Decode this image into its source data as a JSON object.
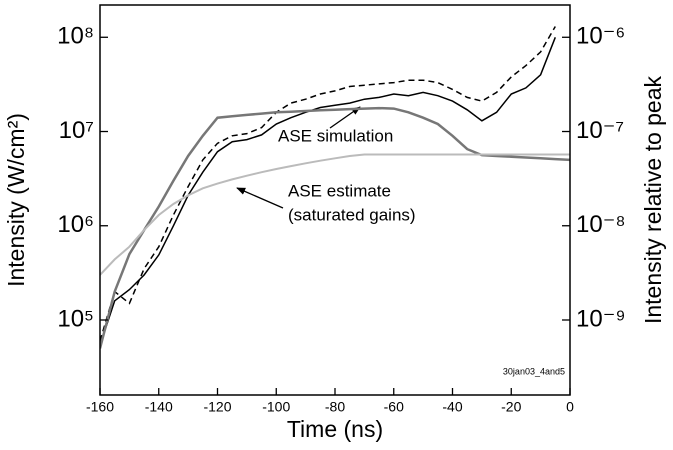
{
  "chart_data": {
    "type": "line",
    "xlabel": "Time (ns)",
    "ylabel": "Intensity (W/cm²)",
    "y2label": "Intensity relative to peak",
    "annotations": [
      "ASE simulation",
      "ASE estimate",
      "(saturated gains)",
      "30jan03_4and5"
    ],
    "x": [
      -160,
      -155,
      -150,
      -145,
      -140,
      -135,
      -130,
      -125,
      -120,
      -115,
      -110,
      -105,
      -100,
      -95,
      -90,
      -85,
      -80,
      -75,
      -70,
      -65,
      -60,
      -55,
      -50,
      -45,
      -40,
      -35,
      -30,
      -25,
      -20,
      -15,
      -10,
      -5,
      0
    ],
    "ylog": true,
    "xlim": [
      -160,
      0
    ],
    "xticks": [
      -160,
      -140,
      -120,
      -100,
      -80,
      -60,
      -40,
      -20,
      0
    ],
    "ylim": [
      16000,
      220000000
    ],
    "yticks": [
      {
        "value": 100000,
        "label": "10⁵"
      },
      {
        "value": 1000000,
        "label": "10⁶"
      },
      {
        "value": 10000000,
        "label": "10⁷"
      },
      {
        "value": 100000000,
        "label": "10⁸"
      }
    ],
    "y2lim": [
      1.6e-10,
      2.2e-06
    ],
    "y2ticks": [
      {
        "value": 1e-09,
        "label": "10⁻⁹"
      },
      {
        "value": 1e-08,
        "label": "10⁻⁸"
      },
      {
        "value": 1e-07,
        "label": "10⁻⁷"
      },
      {
        "value": 1e-06,
        "label": "10⁻⁶"
      }
    ],
    "series": [
      {
        "color": "#000000",
        "dash": false,
        "width": 1.5,
        "values": [
          54000,
          160000,
          210000,
          300000,
          490000,
          1000000,
          2100000,
          3700000,
          6100000,
          7800000,
          8200000,
          9200000,
          12000000,
          14000000,
          16000000,
          18000000,
          19000000,
          20000000,
          22000000,
          23000000,
          25000000,
          24000000,
          26000000,
          24000000,
          21000000,
          17000000,
          13000000,
          16000000,
          25000000,
          29000000,
          40000000,
          100000000,
          null
        ]
      },
      {
        "color": "#000000",
        "dash": true,
        "width": 1.5,
        "values": [
          60000,
          200000,
          150000,
          350000,
          600000,
          1300000,
          2600000,
          5000000,
          7500000,
          9000000,
          9500000,
          11000000,
          16000000,
          20000000,
          22000000,
          25000000,
          27000000,
          30000000,
          31000000,
          32000000,
          33000000,
          35000000,
          35000000,
          33000000,
          28000000,
          23000000,
          21000000,
          26000000,
          38000000,
          50000000,
          70000000,
          130000000,
          null
        ]
      },
      {
        "color": "#777777",
        "dash": false,
        "width": 2.5,
        "values": [
          50000,
          200000,
          500000,
          900000,
          1600000,
          3000000,
          5500000,
          9000000,
          14000000,
          14500000,
          15000000,
          15500000,
          16000000,
          16200000,
          16500000,
          16800000,
          17000000,
          17300000,
          17500000,
          17700000,
          17500000,
          16000000,
          14000000,
          12000000,
          9000000,
          6500000,
          5600000,
          5500000,
          5400000,
          5300000,
          5200000,
          5100000,
          5000000
        ]
      },
      {
        "color": "#bbbbbb",
        "dash": false,
        "width": 2,
        "values": [
          300000,
          440000,
          600000,
          900000,
          1300000,
          1700000,
          2100000,
          2500000,
          2800000,
          3100000,
          3400000,
          3700000,
          4000000,
          4300000,
          4600000,
          4900000,
          5200000,
          5500000,
          5700000,
          5700000,
          5700000,
          5700000,
          5700000,
          5700000,
          5700000,
          5700000,
          5700000,
          5700000,
          5700000,
          5700000,
          5700000,
          5700000,
          5700000
        ]
      }
    ]
  }
}
